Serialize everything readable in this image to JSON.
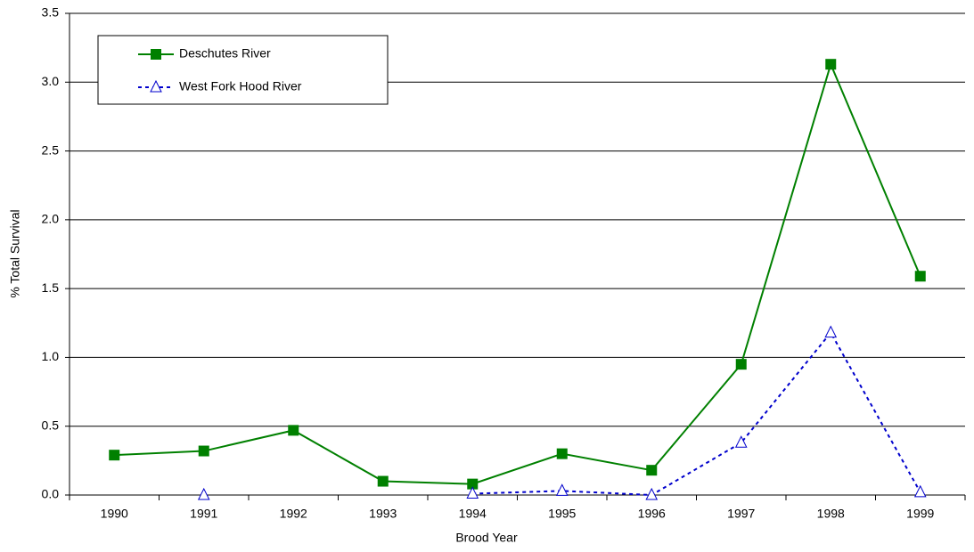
{
  "chart_data": {
    "type": "line",
    "x_label": "Brood Year",
    "y_label": "% Total Survival",
    "categories": [
      "1990",
      "1991",
      "1992",
      "1993",
      "1994",
      "1995",
      "1996",
      "1997",
      "1998",
      "1999"
    ],
    "series": [
      {
        "name": "Deschutes River",
        "color": "#008000",
        "marker": "square",
        "dash": false,
        "values": [
          0.29,
          0.32,
          0.47,
          0.1,
          0.08,
          0.3,
          0.18,
          0.95,
          3.13,
          1.59
        ]
      },
      {
        "name": "West Fork Hood River",
        "color": "#0000cc",
        "marker": "triangle",
        "dash": true,
        "values": [
          null,
          0.0,
          null,
          null,
          0.01,
          0.03,
          0.0,
          0.38,
          1.18,
          0.02
        ]
      }
    ],
    "ylim": [
      0,
      3.5
    ],
    "yticks": [
      {
        "value": 0,
        "label": "0.0"
      },
      0.5,
      {
        "value": 1,
        "label": "1.0"
      },
      1.5,
      {
        "value": 2,
        "label": "2.0"
      },
      2.5,
      {
        "value": 3,
        "label": "3.0"
      },
      3.5
    ],
    "grid": true,
    "legend": "upper left"
  }
}
